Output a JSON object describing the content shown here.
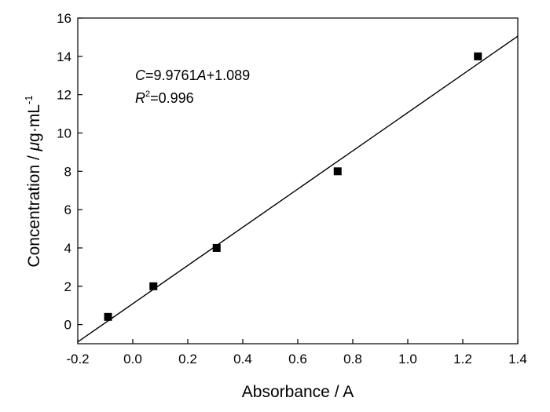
{
  "chart_data": {
    "type": "scatter",
    "xlabel": "Absorbance / A",
    "ylabel": {
      "prefix": "Concentration / ",
      "mu": "μ",
      "unit": "g·mL",
      "sup": "-1"
    },
    "xlim": [
      -0.2,
      1.4
    ],
    "ylim": [
      -1,
      16
    ],
    "xticks": [
      -0.2,
      0.0,
      0.2,
      0.4,
      0.6,
      0.8,
      1.0,
      1.2,
      1.4
    ],
    "xtick_labels": [
      "-0.2",
      "0.0",
      "0.2",
      "0.4",
      "0.6",
      "0.8",
      "1.0",
      "1.2",
      "1.4"
    ],
    "yticks": [
      0,
      2,
      4,
      6,
      8,
      10,
      12,
      14,
      16
    ],
    "ytick_labels": [
      "0",
      "2",
      "4",
      "6",
      "8",
      "10",
      "12",
      "14",
      "16"
    ],
    "grid": false,
    "series": [
      {
        "marker": "square",
        "color": "#000000",
        "x": [
          -0.09,
          0.075,
          0.305,
          0.745,
          1.255
        ],
        "y": [
          0.4,
          2.0,
          4.0,
          8.0,
          14.0
        ]
      }
    ],
    "fit_line": {
      "slope": 9.9761,
      "intercept": 1.089,
      "x_range": [
        -0.2,
        1.4
      ],
      "color": "#000000"
    },
    "annotation": {
      "equation": {
        "var_c": "C",
        "eq_mid": "=9.9761",
        "var_a": "A",
        "eq_end": "+1.089"
      },
      "r2": {
        "var_r": "R",
        "sup": "2",
        "value": "=0.996"
      }
    }
  }
}
